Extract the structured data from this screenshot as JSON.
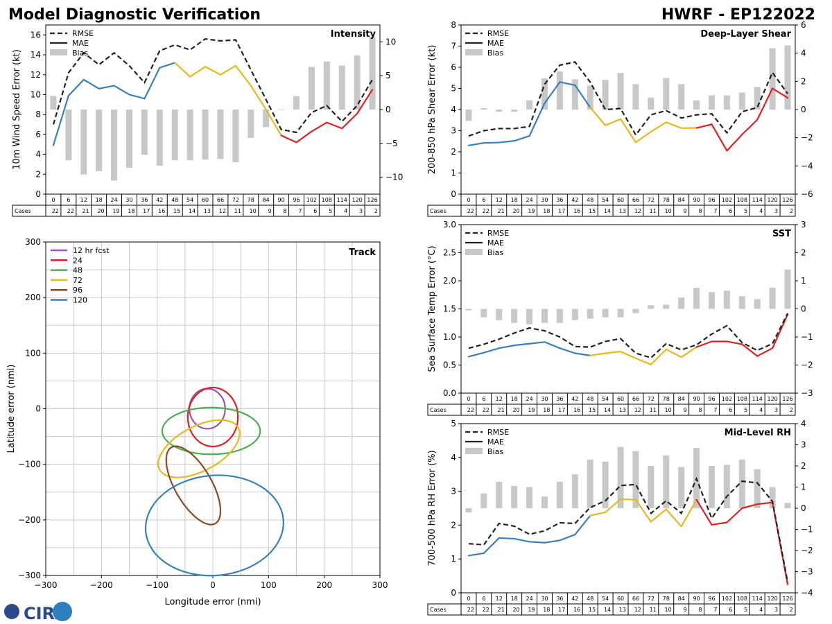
{
  "header": {
    "title": "Model Diagnostic Verification",
    "subtitle": "HWRF - EP122022",
    "logo_text": "CIRA"
  },
  "colors": {
    "rmse": "#222222",
    "blue": "#3a7fb8",
    "yellow": "#e8b820",
    "red": "#dd2222",
    "bias": "#c8c8c8",
    "grid": "#cccccc",
    "track_12": "#9b55b0",
    "track_24": "#dd2222",
    "track_48": "#4caf50",
    "track_72": "#e8b820",
    "track_96": "#8a4a22",
    "track_120": "#3a7fb8"
  },
  "legend": {
    "rmse": "RMSE",
    "mae": "MAE",
    "bias": "Bias"
  },
  "cases_label": "Cases",
  "chart_data": [
    {
      "id": "intensity",
      "type": "line",
      "title": "Intensity",
      "ylabel": "10m Wind Speed Error (kt)",
      "ylim": [
        0,
        17
      ],
      "yticks": [
        0,
        2,
        4,
        6,
        8,
        10,
        12,
        14,
        16
      ],
      "y2lim": [
        -12.5,
        12.5
      ],
      "y2ticks": [
        -10,
        -5,
        0,
        5,
        10
      ],
      "categories": [
        "0",
        "6",
        "12",
        "18",
        "24",
        "30",
        "36",
        "42",
        "48",
        "54",
        "60",
        "66",
        "72",
        "78",
        "84",
        "90",
        "96",
        "102",
        "108",
        "114",
        "120",
        "126"
      ],
      "cases": [
        22,
        22,
        21,
        20,
        19,
        18,
        17,
        16,
        15,
        14,
        13,
        12,
        11,
        10,
        9,
        8,
        7,
        6,
        5,
        4,
        3,
        2
      ],
      "series": [
        {
          "name": "RMSE",
          "values": [
            7.0,
            12.2,
            14.2,
            13.0,
            14.2,
            12.9,
            11.2,
            14.4,
            15.0,
            14.5,
            15.6,
            15.4,
            15.5,
            12.5,
            9.5,
            6.5,
            6.2,
            8.2,
            8.9,
            7.3,
            8.9,
            11.5
          ]
        },
        {
          "name": "MAE",
          "values": [
            4.9,
            9.9,
            11.5,
            10.6,
            10.9,
            10.0,
            9.6,
            12.7,
            13.2,
            11.8,
            12.8,
            12.0,
            12.9,
            10.9,
            8.5,
            5.9,
            5.2,
            6.3,
            7.2,
            6.6,
            8.1,
            10.5
          ]
        },
        {
          "name": "Bias",
          "values": [
            2.0,
            -7.5,
            -9.6,
            -9.1,
            -10.5,
            -8.6,
            -6.7,
            -8.3,
            -7.5,
            -7.5,
            -7.4,
            -7.3,
            -7.8,
            -4.2,
            -2.6,
            0.0,
            2.0,
            6.3,
            7.1,
            6.5,
            8.0,
            10.7
          ]
        }
      ]
    },
    {
      "id": "shear",
      "type": "line",
      "title": "Deep-Layer Shear",
      "ylabel": "200-850 hPa Shear Error (kt)",
      "ylim": [
        0,
        8
      ],
      "yticks": [
        0,
        1,
        2,
        3,
        4,
        5,
        6,
        7,
        8
      ],
      "y2lim": [
        -6,
        6
      ],
      "y2ticks": [
        -6,
        -4,
        -2,
        0,
        2,
        4,
        6
      ],
      "categories": [
        "0",
        "6",
        "12",
        "18",
        "24",
        "30",
        "36",
        "42",
        "48",
        "54",
        "60",
        "66",
        "72",
        "78",
        "84",
        "90",
        "96",
        "102",
        "108",
        "114",
        "120",
        "126"
      ],
      "cases": [
        22,
        22,
        21,
        20,
        19,
        18,
        17,
        16,
        15,
        14,
        13,
        12,
        11,
        10,
        9,
        8,
        7,
        6,
        5,
        4,
        3,
        2
      ],
      "series": [
        {
          "name": "RMSE",
          "values": [
            2.75,
            3.0,
            3.1,
            3.1,
            3.2,
            5.2,
            6.1,
            6.25,
            5.3,
            4.0,
            4.05,
            2.8,
            3.75,
            3.95,
            3.6,
            3.75,
            3.8,
            2.9,
            3.9,
            4.1,
            5.75,
            4.75
          ]
        },
        {
          "name": "MAE",
          "values": [
            2.3,
            2.42,
            2.44,
            2.52,
            2.75,
            4.3,
            5.3,
            5.15,
            4.1,
            3.25,
            3.55,
            2.45,
            2.95,
            3.4,
            3.12,
            3.13,
            3.3,
            2.05,
            2.82,
            3.52,
            5.0,
            4.55
          ]
        },
        {
          "name": "Bias",
          "values": [
            -0.8,
            0.1,
            -0.15,
            -0.15,
            0.65,
            2.2,
            2.7,
            2.15,
            1.7,
            2.1,
            2.6,
            1.8,
            0.85,
            2.25,
            1.8,
            0.65,
            1.0,
            1.0,
            1.2,
            1.6,
            4.35,
            4.55
          ]
        }
      ]
    },
    {
      "id": "sst",
      "type": "line",
      "title": "SST",
      "ylabel": "Sea Surface Temp Error (°C)",
      "ylim": [
        0,
        3
      ],
      "yticks": [
        "0.0",
        "0.5",
        "1.0",
        "1.5",
        "2.0",
        "2.5",
        "3.0"
      ],
      "y2lim": [
        -3,
        3
      ],
      "y2ticks": [
        -3,
        -2,
        -1,
        0,
        1,
        2,
        3
      ],
      "categories": [
        "0",
        "6",
        "12",
        "18",
        "24",
        "30",
        "36",
        "42",
        "48",
        "54",
        "60",
        "66",
        "72",
        "78",
        "84",
        "90",
        "96",
        "102",
        "108",
        "114",
        "120",
        "126"
      ],
      "cases": [
        22,
        22,
        21,
        20,
        19,
        18,
        17,
        16,
        15,
        14,
        13,
        12,
        11,
        10,
        9,
        8,
        7,
        6,
        5,
        4,
        3,
        2
      ],
      "series": [
        {
          "name": "RMSE",
          "values": [
            0.8,
            0.87,
            0.96,
            1.07,
            1.16,
            1.11,
            1.0,
            0.83,
            0.82,
            0.92,
            0.97,
            0.71,
            0.63,
            0.88,
            0.77,
            0.86,
            1.05,
            1.2,
            0.9,
            0.76,
            0.88,
            1.42
          ]
        },
        {
          "name": "MAE",
          "values": [
            0.65,
            0.72,
            0.8,
            0.85,
            0.88,
            0.91,
            0.8,
            0.71,
            0.67,
            0.71,
            0.74,
            0.62,
            0.51,
            0.78,
            0.64,
            0.82,
            0.92,
            0.92,
            0.87,
            0.66,
            0.8,
            1.4
          ]
        },
        {
          "name": "Bias",
          "values": [
            -0.05,
            -0.3,
            -0.4,
            -0.5,
            -0.55,
            -0.5,
            -0.5,
            -0.4,
            -0.35,
            -0.3,
            -0.3,
            -0.15,
            0.13,
            0.15,
            0.4,
            0.75,
            0.6,
            0.65,
            0.45,
            0.35,
            0.75,
            1.4
          ]
        }
      ]
    },
    {
      "id": "rh",
      "type": "line",
      "title": "Mid-Level RH",
      "ylabel": "700-500 hPa RH Error (%)",
      "ylim": [
        0,
        5
      ],
      "yticks": [
        0,
        1,
        2,
        3,
        4,
        5
      ],
      "y2lim": [
        -4,
        4
      ],
      "y2ticks": [
        -4,
        -3,
        -2,
        -1,
        0,
        1,
        2,
        3,
        4
      ],
      "categories": [
        "0",
        "6",
        "12",
        "18",
        "24",
        "30",
        "36",
        "42",
        "48",
        "54",
        "60",
        "66",
        "72",
        "78",
        "84",
        "90",
        "96",
        "102",
        "108",
        "114",
        "120",
        "126"
      ],
      "cases": [
        22,
        22,
        21,
        20,
        19,
        18,
        17,
        16,
        15,
        14,
        13,
        12,
        11,
        10,
        9,
        8,
        7,
        6,
        5,
        4,
        3,
        2
      ],
      "series": [
        {
          "name": "RMSE",
          "values": [
            1.45,
            1.42,
            2.05,
            1.97,
            1.73,
            1.83,
            2.07,
            2.05,
            2.52,
            2.72,
            3.17,
            3.2,
            2.35,
            2.72,
            2.35,
            3.37,
            2.2,
            2.85,
            3.3,
            3.25,
            2.7,
            0.32
          ]
        },
        {
          "name": "MAE",
          "values": [
            1.1,
            1.17,
            1.62,
            1.6,
            1.51,
            1.48,
            1.55,
            1.72,
            2.28,
            2.38,
            2.77,
            2.75,
            2.1,
            2.47,
            1.96,
            2.75,
            2.01,
            2.08,
            2.5,
            2.62,
            2.67,
            0.25
          ]
        },
        {
          "name": "Bias",
          "values": [
            -0.2,
            0.7,
            1.25,
            1.05,
            1.0,
            0.55,
            1.25,
            1.6,
            2.3,
            2.2,
            2.9,
            2.7,
            2.0,
            2.5,
            1.95,
            2.85,
            2.0,
            2.05,
            2.3,
            1.85,
            1.0,
            0.25
          ]
        }
      ]
    },
    {
      "id": "track",
      "type": "scatter",
      "title": "Track",
      "xlabel": "Longitude error (nmi)",
      "ylabel": "Latitude error (nmi)",
      "xlim": [
        -300,
        300
      ],
      "ylim": [
        -300,
        300
      ],
      "xticks": [
        -300,
        -200,
        -100,
        0,
        100,
        200,
        300
      ],
      "yticks": [
        -300,
        -200,
        -100,
        0,
        100,
        200,
        300
      ],
      "ellipses": [
        {
          "name": "12 hr fcst",
          "cx": -10,
          "cy": 0,
          "rx": 32,
          "ry": 36,
          "rot": 0
        },
        {
          "name": "24",
          "cx": 0,
          "cy": -15,
          "rx": 45,
          "ry": 53,
          "rot": 0
        },
        {
          "name": "48",
          "cx": -3,
          "cy": -40,
          "rx": 88,
          "ry": 42,
          "rot": 0
        },
        {
          "name": "72",
          "cx": -25,
          "cy": -72,
          "rx": 80,
          "ry": 40,
          "rot": -28
        },
        {
          "name": "96",
          "cx": -35,
          "cy": -138,
          "rx": 79,
          "ry": 33,
          "rot": 60
        },
        {
          "name": "120",
          "cx": 3,
          "cy": -210,
          "rx": 124,
          "ry": 90,
          "rot": -5
        }
      ]
    }
  ]
}
